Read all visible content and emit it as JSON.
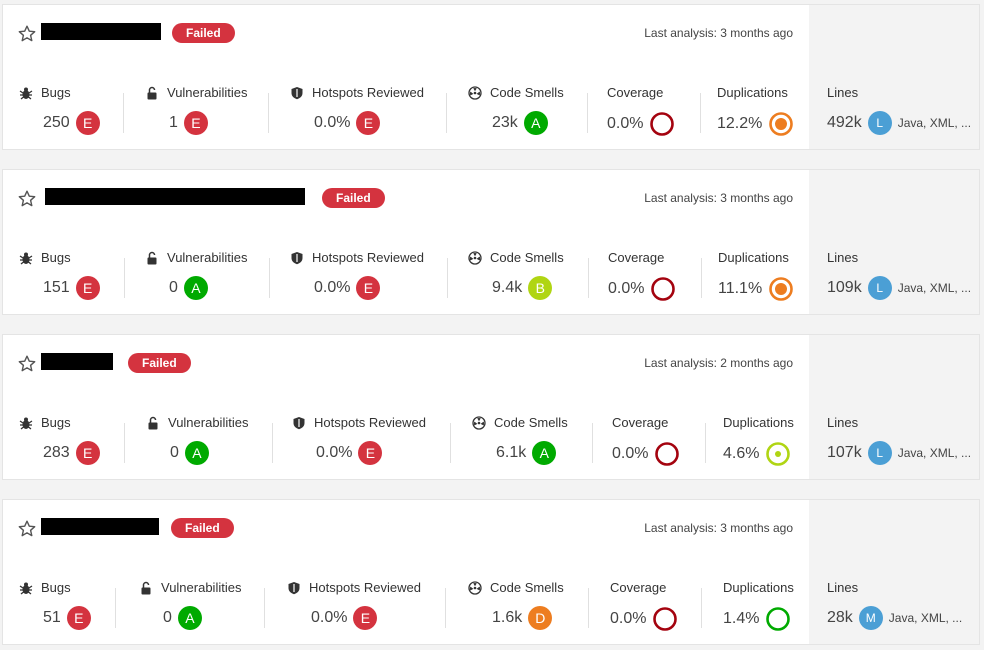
{
  "labels": {
    "bugs": "Bugs",
    "vulnerabilities": "Vulnerabilities",
    "hotspots": "Hotspots Reviewed",
    "code_smells": "Code Smells",
    "coverage": "Coverage",
    "duplications": "Duplications",
    "lines": "Lines"
  },
  "colors": {
    "failed": "#d4333f",
    "rating_A": "#00aa00",
    "rating_B": "#b0d513",
    "rating_D": "#ed7d20",
    "rating_E": "#d4333f",
    "size": "#4b9fd5",
    "coverage_ring": "#a4030f"
  },
  "projects": [
    {
      "status": "Failed",
      "last_analysis": "Last analysis: 3 months ago",
      "bugs": "250",
      "bugs_rating": "E",
      "vulnerabilities": "1",
      "vulnerabilities_rating": "E",
      "hotspots": "0.0%",
      "hotspots_rating": "E",
      "code_smells": "23k",
      "code_smells_rating": "A",
      "coverage": "0.0%",
      "duplications": "12.2%",
      "duplications_level": "orange",
      "lines": "492k",
      "size_rating": "L",
      "languages": "Java, XML, ..."
    },
    {
      "status": "Failed",
      "last_analysis": "Last analysis: 3 months ago",
      "bugs": "151",
      "bugs_rating": "E",
      "vulnerabilities": "0",
      "vulnerabilities_rating": "A",
      "hotspots": "0.0%",
      "hotspots_rating": "E",
      "code_smells": "9.4k",
      "code_smells_rating": "B",
      "coverage": "0.0%",
      "duplications": "11.1%",
      "duplications_level": "orange",
      "lines": "109k",
      "size_rating": "L",
      "languages": "Java, XML, ..."
    },
    {
      "status": "Failed",
      "last_analysis": "Last analysis: 2 months ago",
      "bugs": "283",
      "bugs_rating": "E",
      "vulnerabilities": "0",
      "vulnerabilities_rating": "A",
      "hotspots": "0.0%",
      "hotspots_rating": "E",
      "code_smells": "6.1k",
      "code_smells_rating": "A",
      "coverage": "0.0%",
      "duplications": "4.6%",
      "duplications_level": "yellow-green",
      "lines": "107k",
      "size_rating": "L",
      "languages": "Java, XML, ..."
    },
    {
      "status": "Failed",
      "last_analysis": "Last analysis: 3 months ago",
      "bugs": "51",
      "bugs_rating": "E",
      "vulnerabilities": "0",
      "vulnerabilities_rating": "A",
      "hotspots": "0.0%",
      "hotspots_rating": "E",
      "code_smells": "1.6k",
      "code_smells_rating": "D",
      "coverage": "0.0%",
      "duplications": "1.4%",
      "duplications_level": "green",
      "lines": "28k",
      "size_rating": "M",
      "languages": "Java, XML, ..."
    }
  ]
}
